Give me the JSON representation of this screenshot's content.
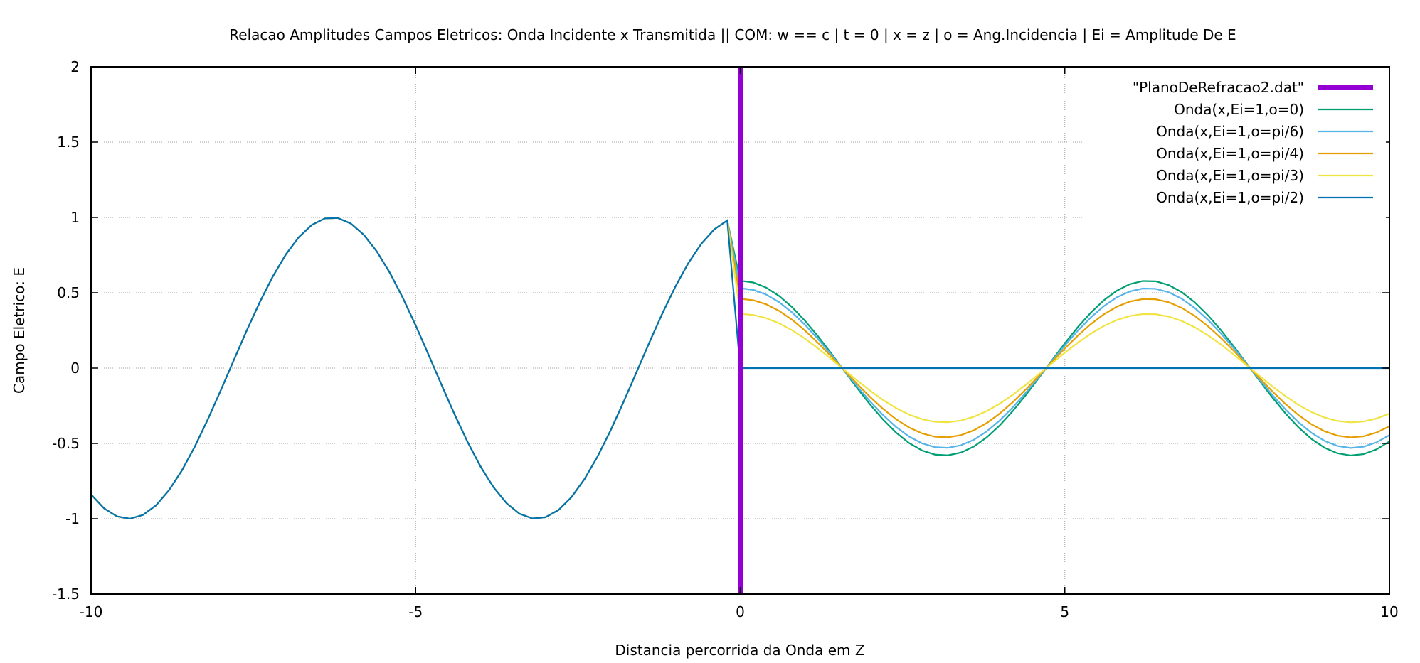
{
  "chart_data": {
    "type": "line",
    "title": "Relacao Amplitudes Campos Eletricos: Onda Incidente x Transmitida || COM: w == c | t = 0 | x = z | o = Ang.Incidencia | Ei = Amplitude De E",
    "xlabel": "Distancia percorrida da Onda em Z",
    "ylabel": "Campo Eletrico: E",
    "xlim": [
      -10,
      10
    ],
    "ylim": [
      -1.5,
      2
    ],
    "xticks": [
      "-10",
      "-5",
      "0",
      "5",
      "10"
    ],
    "yticks": [
      "-1.5",
      "-1",
      "-0.5",
      "0",
      "0.5",
      "1",
      "1.5",
      "2"
    ],
    "grid": true,
    "legend_position": "top-right",
    "series": [
      {
        "name": "\"PlanoDeRefracao2.dat\"",
        "color": "#9400d3",
        "kind": "vertical-line",
        "x": 0,
        "ylim": [
          -1.5,
          2
        ]
      },
      {
        "name": "Onda(x,Ei=1,o=0)",
        "color": "#009e73",
        "angle_deg": 0,
        "transmitted_amplitude": 0.58
      },
      {
        "name": "Onda(x,Ei=1,o=pi/6)",
        "color": "#56b4e9",
        "angle_deg": 30,
        "transmitted_amplitude": 0.53
      },
      {
        "name": "Onda(x,Ei=1,o=pi/4)",
        "color": "#e69f00",
        "angle_deg": 45,
        "transmitted_amplitude": 0.46
      },
      {
        "name": "Onda(x,Ei=1,o=pi/3)",
        "color": "#f0e442",
        "angle_deg": 60,
        "transmitted_amplitude": 0.36
      },
      {
        "name": "Onda(x,Ei=1,o=pi/2)",
        "color": "#0072b2",
        "angle_deg": 90,
        "transmitted_amplitude": 0
      }
    ],
    "incident_wave": {
      "function": "cos(x)",
      "x_range": [
        -10,
        0
      ]
    },
    "transmitted_wave": {
      "function": "A*cos(x)",
      "x_range": [
        0,
        10
      ]
    }
  }
}
